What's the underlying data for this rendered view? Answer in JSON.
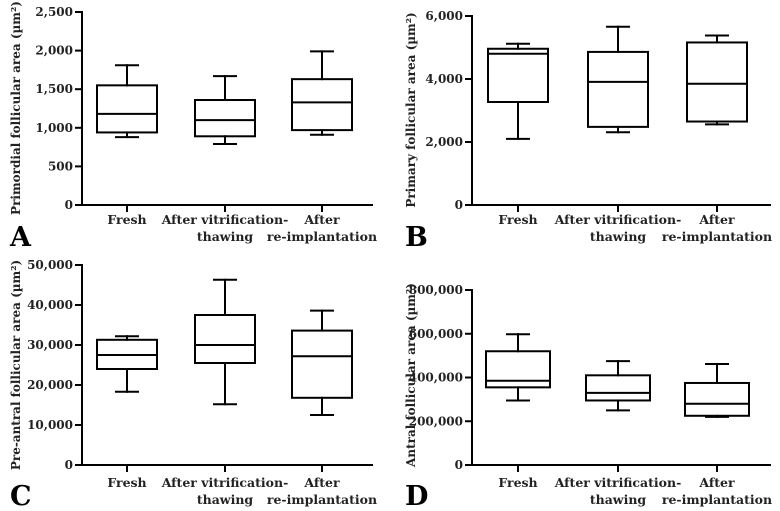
{
  "chart_data": [
    {
      "type": "boxplot",
      "panel_label": "A",
      "ylabel": "Primordial follicular area (µm²)",
      "ylim": [
        0,
        2500
      ],
      "yticks": [
        0,
        500,
        1000,
        1500,
        2000,
        2500
      ],
      "ytick_labels": [
        "0",
        "500",
        "1,000",
        "1,500",
        "2,000",
        "2,500"
      ],
      "categories": [
        {
          "line1": "Fresh",
          "line2": ""
        },
        {
          "line1": "After vitrification-",
          "line2": "thawing"
        },
        {
          "line1": "After",
          "line2": "re-implantation"
        }
      ],
      "boxes": [
        {
          "min": 880,
          "q1": 940,
          "median": 1180,
          "q3": 1550,
          "max": 1810
        },
        {
          "min": 790,
          "q1": 890,
          "median": 1100,
          "q3": 1360,
          "max": 1670
        },
        {
          "min": 910,
          "q1": 970,
          "median": 1330,
          "q3": 1630,
          "max": 1990
        }
      ]
    },
    {
      "type": "boxplot",
      "panel_label": "B",
      "ylabel": "Primary follicular area (µm²)",
      "ylim": [
        0,
        6000
      ],
      "yticks": [
        0,
        2000,
        4000,
        6000
      ],
      "ytick_labels": [
        "0",
        "2,000",
        "4,000",
        "6,000"
      ],
      "categories": [
        {
          "line1": "Fresh",
          "line2": ""
        },
        {
          "line1": "After vitrification-",
          "line2": "thawing"
        },
        {
          "line1": "After",
          "line2": "re-implantation"
        }
      ],
      "boxes": [
        {
          "min": 2100,
          "q1": 3270,
          "median": 4800,
          "q3": 4960,
          "max": 5120
        },
        {
          "min": 2310,
          "q1": 2480,
          "median": 3910,
          "q3": 4860,
          "max": 5660
        },
        {
          "min": 2560,
          "q1": 2650,
          "median": 3850,
          "q3": 5160,
          "max": 5380
        }
      ]
    },
    {
      "type": "boxplot",
      "panel_label": "C",
      "ylabel": "Pre-antral follicular area (µm²)",
      "ylim": [
        0,
        50000
      ],
      "yticks": [
        0,
        10000,
        20000,
        30000,
        40000,
        50000
      ],
      "ytick_labels": [
        "0",
        "10,000",
        "20,000",
        "30,000",
        "40,000",
        "50,000"
      ],
      "categories": [
        {
          "line1": "Fresh",
          "line2": ""
        },
        {
          "line1": "After vitrification-",
          "line2": "thawing"
        },
        {
          "line1": "After",
          "line2": "re-implantation"
        }
      ],
      "boxes": [
        {
          "min": 18300,
          "q1": 24000,
          "median": 27500,
          "q3": 31300,
          "max": 32200
        },
        {
          "min": 15200,
          "q1": 25500,
          "median": 30000,
          "q3": 37500,
          "max": 46300
        },
        {
          "min": 12500,
          "q1": 16800,
          "median": 27200,
          "q3": 33600,
          "max": 38600
        }
      ]
    },
    {
      "type": "boxplot",
      "panel_label": "D",
      "ylabel": "Antral follicular area  (µm²)",
      "ylim": [
        0,
        800000
      ],
      "yticks": [
        0,
        200000,
        400000,
        600000,
        800000
      ],
      "ytick_labels": [
        "0",
        "200,000",
        "400,000",
        "600,000",
        "800,000"
      ],
      "categories": [
        {
          "line1": "Fresh",
          "line2": ""
        },
        {
          "line1": "After vitrification-",
          "line2": "thawing"
        },
        {
          "line1": "After",
          "line2": "re-implantation"
        }
      ],
      "boxes": [
        {
          "min": 295000,
          "q1": 355000,
          "median": 385000,
          "q3": 520000,
          "max": 598000
        },
        {
          "min": 250000,
          "q1": 295000,
          "median": 330000,
          "q3": 410000,
          "max": 475000
        },
        {
          "min": 220000,
          "q1": 225000,
          "median": 280000,
          "q3": 375000,
          "max": 462000
        }
      ]
    }
  ]
}
